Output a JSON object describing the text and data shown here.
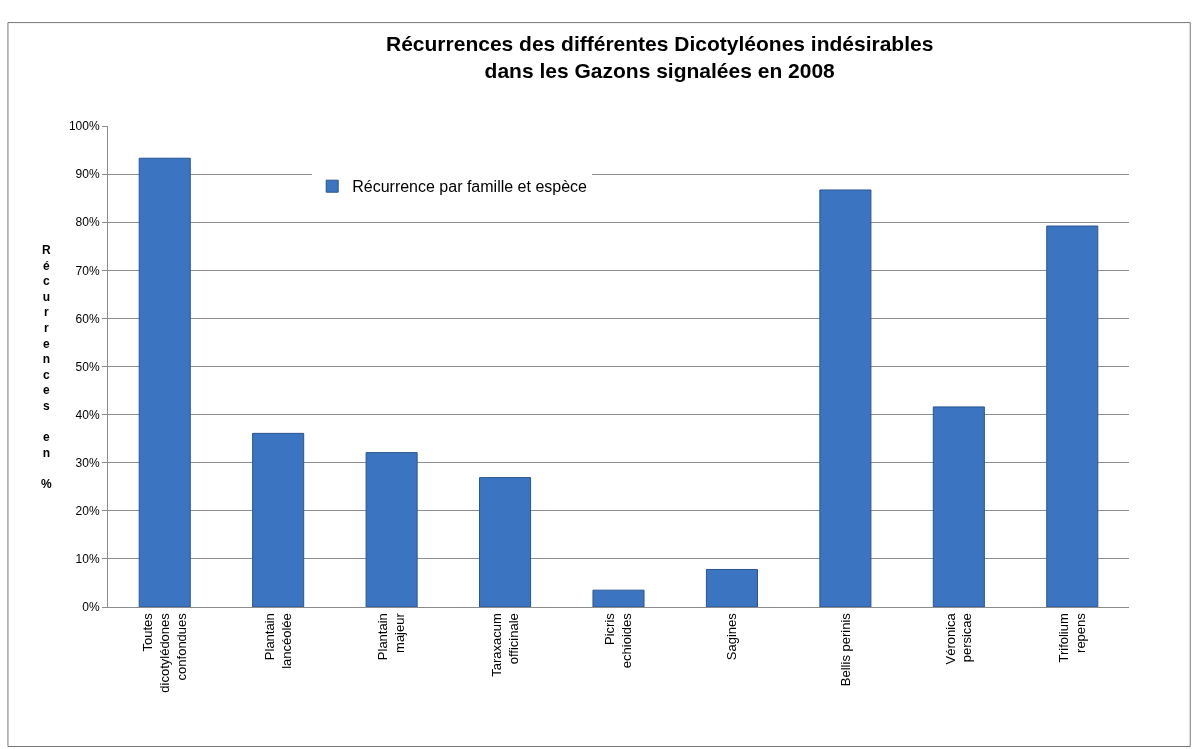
{
  "chart_data": {
    "type": "bar",
    "title": "Récurrences des différentes Dicotyléones indésirables\ndans les Gazons signalées en 2008",
    "ylabel": "Récurrences en %",
    "categories": [
      "Toutes\ndicotylédones\nconfondues",
      "Plantain\nlancéolée",
      "Plantain\nmajeur",
      "Taraxacum\nofficinale",
      "Picris\nechioides",
      "Sagines",
      "Bellis perinis",
      "Véronica\npersicae",
      "Trifolium\nrepens"
    ],
    "series": [
      {
        "name": "Récurrence par famille et espèce",
        "color": "#3b74c0",
        "values": [
          93.3,
          36.1,
          32.1,
          26.9,
          3.5,
          7.8,
          86.7,
          41.6,
          79.2
        ]
      }
    ],
    "ylim": [
      0,
      100
    ],
    "yticks": [
      {
        "value": 0,
        "label": "0%"
      },
      {
        "value": 10,
        "label": "10%"
      },
      {
        "value": 20,
        "label": "20%"
      },
      {
        "value": 30,
        "label": "30%"
      },
      {
        "value": 40,
        "label": "40%"
      },
      {
        "value": 50,
        "label": "50%"
      },
      {
        "value": 60,
        "label": "60%"
      },
      {
        "value": 70,
        "label": "70%"
      },
      {
        "value": 80,
        "label": "80%"
      },
      {
        "value": 90,
        "label": "90%"
      },
      {
        "value": 100,
        "label": "100%"
      }
    ],
    "grid": "y",
    "legend": "top"
  }
}
